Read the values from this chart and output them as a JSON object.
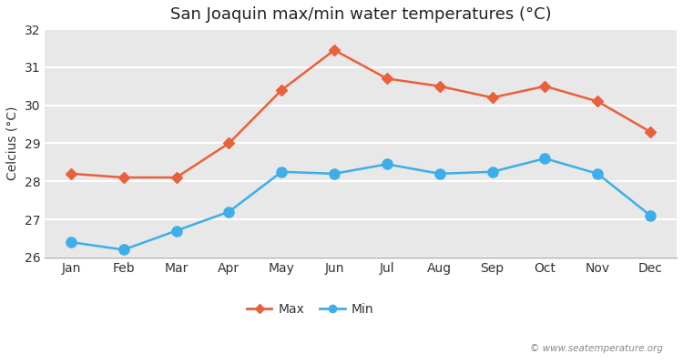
{
  "title": "San Joaquin max/min water temperatures (°C)",
  "ylabel": "Celcius (°C)",
  "months": [
    "Jan",
    "Feb",
    "Mar",
    "Apr",
    "May",
    "Jun",
    "Jul",
    "Aug",
    "Sep",
    "Oct",
    "Nov",
    "Dec"
  ],
  "max_values": [
    28.2,
    28.1,
    28.1,
    29.0,
    30.4,
    31.45,
    30.7,
    30.5,
    30.2,
    30.5,
    30.1,
    29.3
  ],
  "min_values": [
    26.4,
    26.2,
    26.7,
    27.2,
    28.25,
    28.2,
    28.45,
    28.2,
    28.25,
    28.6,
    28.2,
    27.1
  ],
  "max_color": "#e8603c",
  "min_color": "#3daee9",
  "fig_bg_color": "#ffffff",
  "plot_bg_color": "#e8e8e8",
  "grid_color": "#ffffff",
  "ylim": [
    26.0,
    32.0
  ],
  "yticks": [
    26,
    27,
    28,
    29,
    30,
    31,
    32
  ],
  "watermark": "© www.seatemperature.org",
  "legend_max": "Max",
  "legend_min": "Min",
  "title_fontsize": 13,
  "label_fontsize": 10,
  "tick_fontsize": 10
}
